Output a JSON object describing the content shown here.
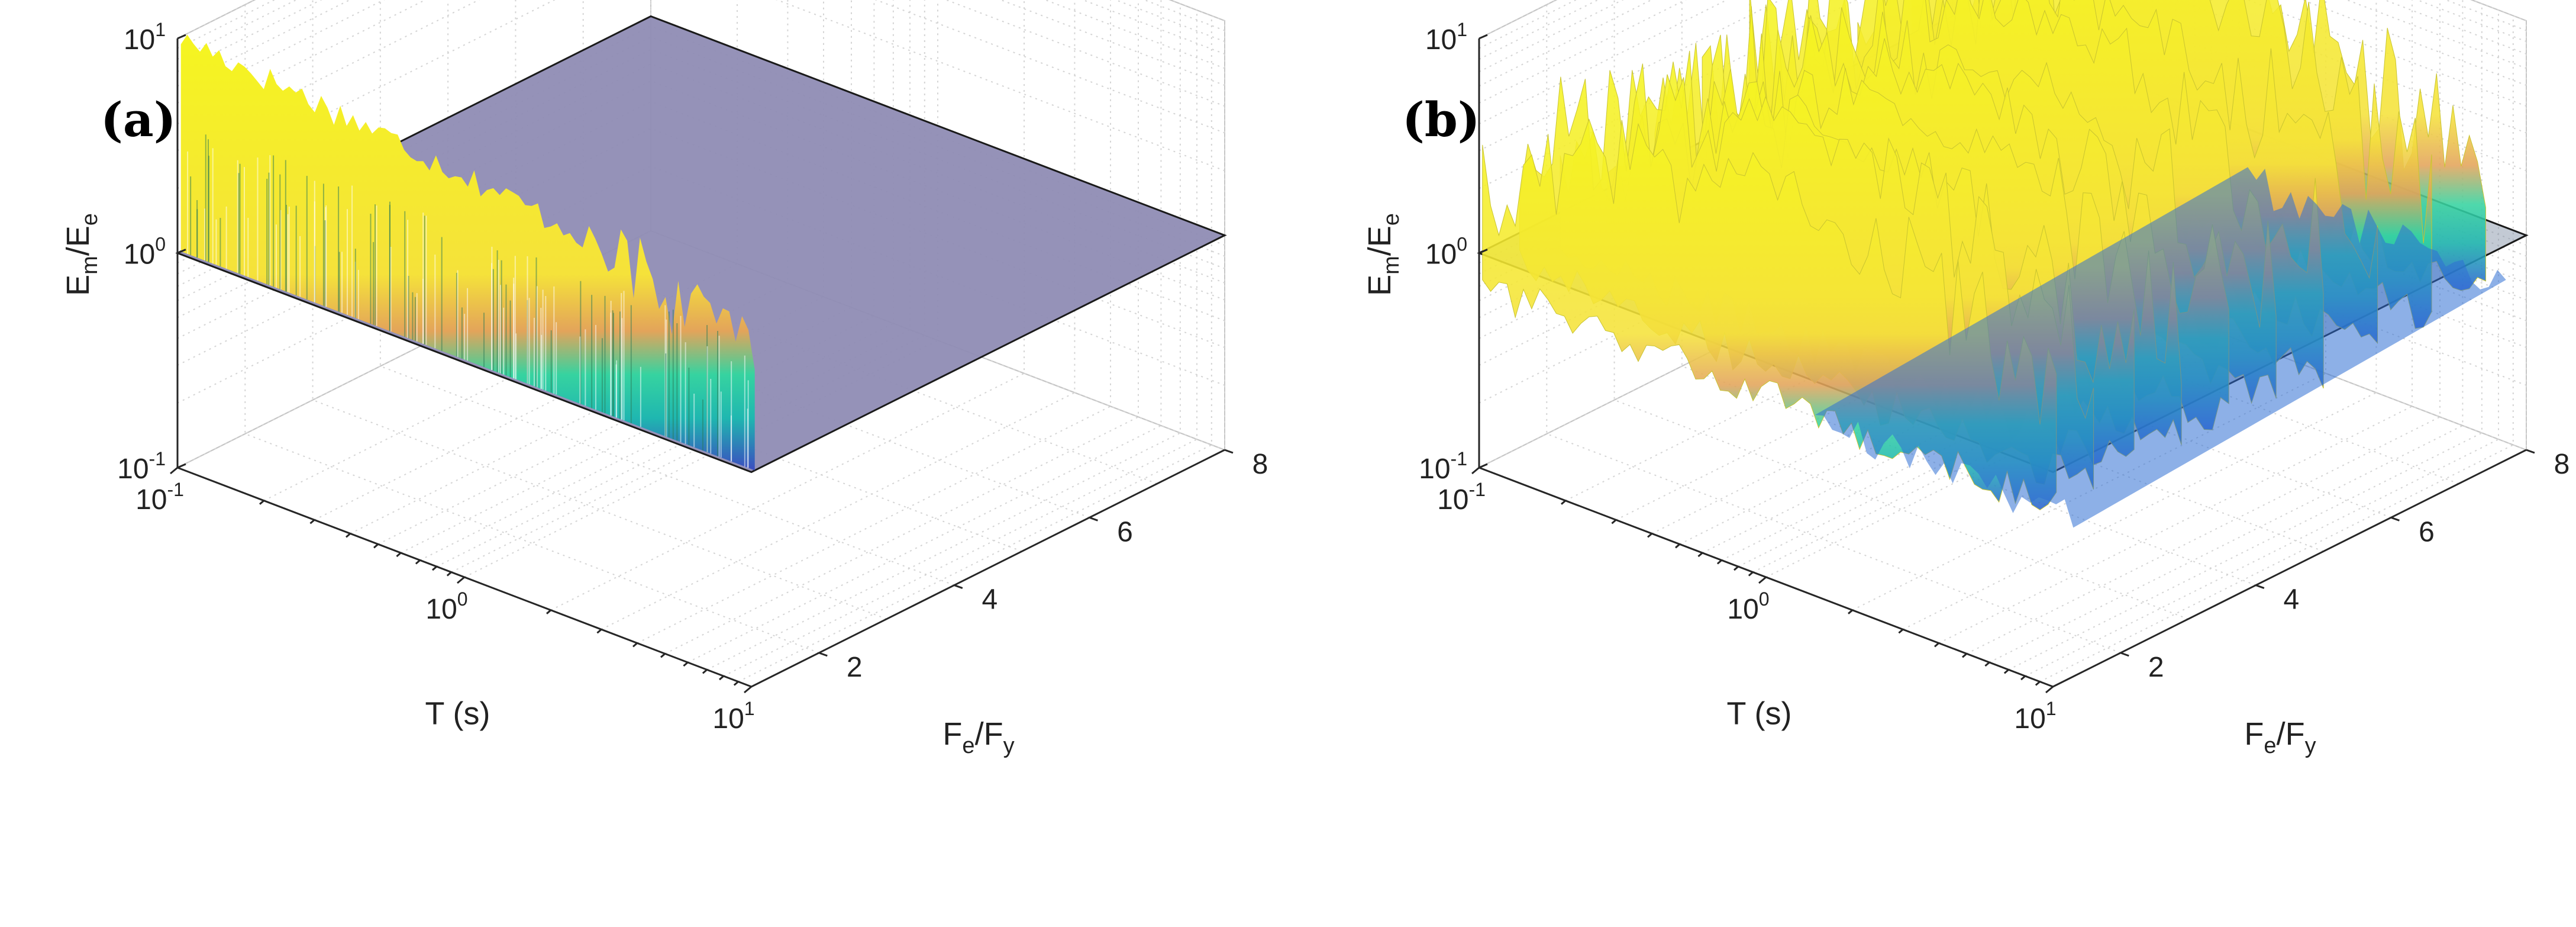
{
  "chart_data": [
    {
      "type": "surface3d",
      "panel_label": "(a)",
      "zlabel": {
        "main": "E",
        "sub1": "m",
        "mid": "/E",
        "sub2": "e"
      },
      "xlabel": "T (s)",
      "ylabel": {
        "main": "F",
        "sub1": "e",
        "mid": "/F",
        "sub2": "y"
      },
      "xscale": "log",
      "xlim": [
        0.1,
        10
      ],
      "ylim": [
        1,
        8
      ],
      "zscale": "log",
      "zlim": [
        0.1,
        10
      ],
      "x_ticks": [
        {
          "base": "10",
          "exp": "-1"
        },
        {
          "base": "10",
          "exp": "0"
        },
        {
          "base": "10",
          "exp": "1"
        }
      ],
      "y_ticks": [
        "2",
        "4",
        "6",
        "8"
      ],
      "z_ticks": [
        {
          "base": "10",
          "exp": "-1"
        },
        {
          "base": "10",
          "exp": "0"
        },
        {
          "base": "10",
          "exp": "1"
        }
      ],
      "plane": {
        "z": 1.0,
        "color": "#8f8cb4"
      },
      "surface_peak_ratio": 10,
      "colormap": [
        "#3b4cc0",
        "#1fb7b0",
        "#36d3a0",
        "#e3a45a",
        "#f5e23a",
        "#f5f520"
      ]
    },
    {
      "type": "surface3d",
      "panel_label": "(b)",
      "zlabel": {
        "main": "E",
        "sub1": "m",
        "mid": "/E",
        "sub2": "e"
      },
      "xlabel": "T (s)",
      "ylabel": {
        "main": "F",
        "sub1": "e",
        "mid": "/F",
        "sub2": "y"
      },
      "xscale": "log",
      "xlim": [
        0.1,
        10
      ],
      "ylim": [
        1,
        8
      ],
      "zscale": "log",
      "zlim": [
        0.1,
        10
      ],
      "x_ticks": [
        {
          "base": "10",
          "exp": "-1"
        },
        {
          "base": "10",
          "exp": "0"
        },
        {
          "base": "10",
          "exp": "1"
        }
      ],
      "y_ticks": [
        "2",
        "4",
        "6",
        "8"
      ],
      "z_ticks": [
        {
          "base": "10",
          "exp": "-1"
        },
        {
          "base": "10",
          "exp": "0"
        },
        {
          "base": "10",
          "exp": "1"
        }
      ],
      "plane": {
        "z": 1.0,
        "color": "#7a8aa0"
      },
      "surface_peak_ratio": 12,
      "colormap": [
        "#2a5fd0",
        "#1fb7b0",
        "#36d3a0",
        "#e3a45a",
        "#f5e23a",
        "#f5f520"
      ]
    }
  ]
}
